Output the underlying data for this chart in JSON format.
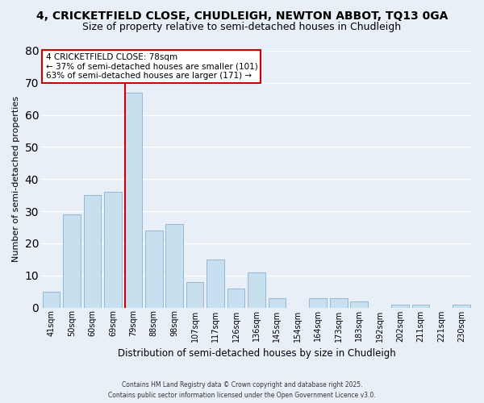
{
  "title": "4, CRICKETFIELD CLOSE, CHUDLEIGH, NEWTON ABBOT, TQ13 0GA",
  "subtitle": "Size of property relative to semi-detached houses in Chudleigh",
  "xlabel": "Distribution of semi-detached houses by size in Chudleigh",
  "ylabel": "Number of semi-detached properties",
  "categories": [
    "41sqm",
    "50sqm",
    "60sqm",
    "69sqm",
    "79sqm",
    "88sqm",
    "98sqm",
    "107sqm",
    "117sqm",
    "126sqm",
    "136sqm",
    "145sqm",
    "154sqm",
    "164sqm",
    "173sqm",
    "183sqm",
    "192sqm",
    "202sqm",
    "211sqm",
    "221sqm",
    "230sqm"
  ],
  "values": [
    5,
    29,
    35,
    36,
    67,
    24,
    26,
    8,
    15,
    6,
    11,
    3,
    0,
    3,
    3,
    2,
    0,
    1,
    1,
    0,
    1
  ],
  "bar_color": "#c8dff0",
  "bar_edge_color": "#90b8d8",
  "vline_color": "#cc0000",
  "ylim": [
    0,
    80
  ],
  "yticks": [
    0,
    10,
    20,
    30,
    40,
    50,
    60,
    70,
    80
  ],
  "annotation_title": "4 CRICKETFIELD CLOSE: 78sqm",
  "annotation_line1": "← 37% of semi-detached houses are smaller (101)",
  "annotation_line2": "63% of semi-detached houses are larger (171) →",
  "annotation_box_color": "white",
  "annotation_box_edge": "#cc0000",
  "footer1": "Contains HM Land Registry data © Crown copyright and database right 2025.",
  "footer2": "Contains public sector information licensed under the Open Government Licence v3.0.",
  "background_color": "#e8eff6",
  "grid_color": "white",
  "title_fontsize": 10,
  "subtitle_fontsize": 9
}
